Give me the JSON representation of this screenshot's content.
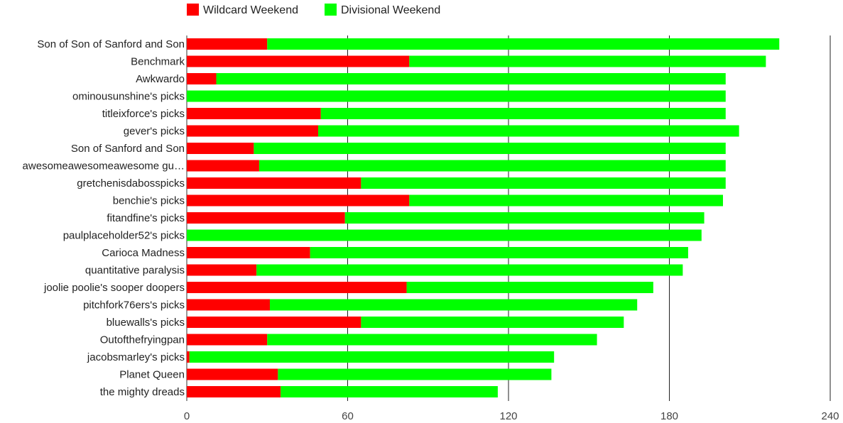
{
  "chart_data": {
    "type": "bar",
    "orientation": "horizontal",
    "stacked": true,
    "legend": {
      "position": "top"
    },
    "grid": true,
    "xlim": [
      0,
      240
    ],
    "x_ticks": [
      0,
      60,
      120,
      180,
      240
    ],
    "categories": [
      "Son of Son of Sanford and Son",
      "Benchmark",
      "Awkwardo",
      "ominousunshine's picks",
      "titleixforce's picks",
      "gever's picks",
      "Son of Sanford and Son",
      "awesomeawesomeawesome gu…",
      "gretchenisdabosspicks",
      "benchie's picks",
      "fitandfine's picks",
      "paulplaceholder52's picks",
      "Carioca Madness",
      "quantitative paralysis",
      "joolie poolie's sooper doopers",
      "pitchfork76ers's picks",
      "bluewalls's picks",
      "Outofthefryingpan",
      "jacobsmarley's picks",
      "Planet Queen",
      "the mighty dreads"
    ],
    "series": [
      {
        "name": "Wildcard Weekend",
        "color": "#ff0000",
        "values": [
          30,
          83,
          11,
          0,
          50,
          49,
          25,
          27,
          65,
          83,
          59,
          0,
          46,
          26,
          82,
          31,
          65,
          30,
          1,
          34,
          35
        ]
      },
      {
        "name": "Divisional Weekend",
        "color": "#00ff00",
        "values": [
          191,
          133,
          190,
          201,
          151,
          157,
          176,
          174,
          136,
          117,
          134,
          192,
          141,
          159,
          92,
          137,
          98,
          123,
          136,
          102,
          81
        ]
      }
    ]
  }
}
